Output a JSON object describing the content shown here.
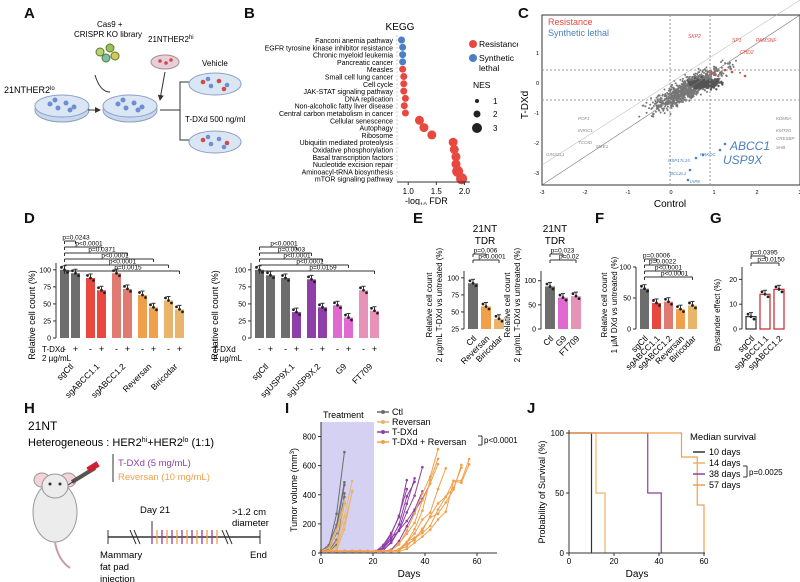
{
  "panels": {
    "A": "A",
    "B": "B",
    "C": "C",
    "D": "D",
    "E": "E",
    "F": "F",
    "G": "G",
    "H": "H",
    "I": "I",
    "J": "J"
  },
  "colors": {
    "grey": "#6d6d6d",
    "red": "#e8483f",
    "salmon": "#e07b73",
    "orange": "#f0a04b",
    "tan": "#e9b46c",
    "purple": "#8e3fa8",
    "pink": "#e06ad0",
    "lightpink": "#e793b8",
    "blue": "#4a7fc1",
    "lavender": "#b7b3ea",
    "darkred": "#c4232c"
  },
  "panelA": {
    "label_cas9": "Cas9 +",
    "label_crispr": "CRISPR KO library",
    "label_cell_lo": "21NTHER2",
    "label_cell_lo_sup": "lo",
    "label_cell_hi": "21NTHER2",
    "label_cell_hi_sup": "hi",
    "label_vehicle": "Vehicle",
    "label_tdxd": "T-DXd 500 ng/mL"
  },
  "panelB": {
    "title": "KEGG",
    "xlabel": "-log",
    "xlabel_sub": "10",
    "xlabel_end": " FDR",
    "legend_resistance": "Resistance",
    "legend_synthetic": "Synthetic",
    "legend_synthetic2": "lethal",
    "legend_nes": "NES",
    "nes_values": [
      "1",
      "2",
      "3"
    ],
    "xticks": [
      "1.0",
      "1.5",
      "2.0"
    ]
  },
  "panelC": {
    "ylabel": "T-DXd",
    "xlabel": "Control",
    "legend_resistance": "Resistance",
    "legend_synthetic": "Synthetic lethal",
    "hit1": "ABCC1",
    "hit2": "USP9X",
    "xticks": [
      "-3",
      "-2",
      "-1",
      "0",
      "1",
      "2",
      "3"
    ],
    "yticks": [
      "1",
      "0",
      "-1",
      "-2",
      "-3"
    ],
    "red_labels": [
      "SKP2",
      "SP1",
      "PAMSNF",
      "CHD2"
    ],
    "grey_labels_left": [
      "POF1",
      "INRIC1",
      "TCOID",
      "GINS2L1",
      "MXE1"
    ],
    "grey_labels_right": [
      "KDM5A",
      "KMT2D",
      "CRESBP",
      "SHB"
    ],
    "blue_labels": [
      "USP17L15",
      "PRKDC",
      "BCL2L1",
      "IAP8"
    ]
  },
  "panelD": {
    "ylabel": "Relative cell count (%)",
    "tdxd_label": "T-DXd",
    "tdxd_dose": "2 µg/mL",
    "left_xlabels": [
      "sgCtl",
      "sgABCC1.1",
      "sgABCC1.2",
      "Reversan",
      "Biricodar"
    ],
    "right_xlabels": [
      "sgCtl",
      "sgUSP9X.1",
      "sgUSP9X.2",
      "G9",
      "FT709"
    ],
    "left_pvals": [
      "p=0.0015",
      "p<0.0001",
      "p<0.0001",
      "p=0.0371",
      "p<0.0001",
      "p=0.0243"
    ],
    "right_pvals": [
      "p=0.0159",
      "p<0.0001",
      "p<0.0001",
      "p=0.0003",
      "p<0.0001"
    ],
    "yticks": [
      "100",
      "75",
      "50",
      "25",
      "0"
    ],
    "pm": [
      "-",
      "+"
    ]
  },
  "panelE": {
    "title1": "21NT",
    "title2": "TDR",
    "ylabel": "Relative cell count",
    "ylabel2": "2 µg/mL T-DXd vs untreated (%)",
    "left_xlabels": [
      "Ctl",
      "Reversan",
      "Biricodar"
    ],
    "right_xlabels": [
      "Ctl",
      "G9",
      "FT709"
    ],
    "left_pvals": [
      "p<0.0001",
      "p=0.006"
    ],
    "right_pvals": [
      "p=0.02",
      "p=0.023"
    ],
    "left_yticks": [
      "100",
      "75",
      "50",
      "25"
    ],
    "right_yticks": [
      "100",
      "50",
      "0"
    ]
  },
  "panelF": {
    "ylabel": "Relative cell count",
    "ylabel2": "1 µM DXd vs untreated (%)",
    "xlabels": [
      "sgCtl",
      "sgABCC1.1",
      "sgABCC1.2",
      "Reversan",
      "Biricodar"
    ],
    "pvals": [
      "p<0.0001",
      "p<0.0001",
      "p=0.0022",
      "p=0.0006"
    ],
    "yticks": [
      "100",
      "50",
      "0"
    ]
  },
  "panelG": {
    "ylabel": "Bystander effect (%)",
    "xlabels": [
      "sgCtl",
      "sgABCC1.1",
      "sgABCC1.2"
    ],
    "pvals": [
      "p=0.0150",
      "p=0.0395"
    ],
    "yticks": [
      "20",
      "10",
      "0"
    ]
  },
  "panelH": {
    "line1": "21NT",
    "line2": "Heterogeneous : HER2",
    "sup_hi": "hi",
    "plus": "+HER2",
    "sup_lo": "lo",
    "ratio": " (1:1)",
    "tdxd": "T-DXd (5 mg/mL)",
    "reversan": "Reversan (10 mg/mL)",
    "day": "Day 21",
    "size": ">1.2 cm",
    "diameter": "diameter",
    "mammary": "Mammary",
    "fat": "fat pad",
    "injection": "injection",
    "end": "End"
  },
  "panelI": {
    "treatment": "Treatment",
    "ylabel": "Tumor volume (mm",
    "ylabel_sup": "3",
    "ylabel_end": ")",
    "xlabel": "Days",
    "legend": [
      "Ctl",
      "Reversan",
      "T-DXd",
      "T-DXd + Reversan"
    ],
    "pval": "p<0.0001",
    "xticks": [
      "0",
      "20",
      "40",
      "60"
    ],
    "yticks": [
      "800",
      "600",
      "400",
      "200",
      "0"
    ]
  },
  "panelJ": {
    "ylabel": "Probability of Survival (%)",
    "xlabel": "Days",
    "legend_title": "Median survival",
    "legend": [
      "10 days",
      "14 days",
      "38 days",
      "57 days"
    ],
    "pval": "p=0.0025",
    "xticks": [
      "0",
      "20",
      "40",
      "60"
    ],
    "yticks": [
      "100",
      "50",
      "0"
    ]
  },
  "chart_data": [
    {
      "type": "scatter",
      "title": "KEGG",
      "xlabel": "-log10 FDR",
      "xlim": [
        0.8,
        2.1
      ],
      "categories": [
        "Fanconi anemia pathway",
        "EGFR tyrosine kinase inhibitor resistance",
        "Chronic myeloid leukemia",
        "Pancreatic cancer",
        "Measles",
        "Small cell lung cancer",
        "Cell cycle",
        "JAK-STAT signaling pathway",
        "DNA replication",
        "Non-alcoholic fatty liver disease",
        "Central carbon metabolism in cancer",
        "Cellular senescence",
        "Autophagy",
        "Ribosome",
        "Ubiquitin mediated proteolysis",
        "Oxidative phosphorylation",
        "Basal transcription factors",
        "Nucleotide excision repair",
        "Aminoacyl-tRNA biosynthesis",
        "mTOR signaling pathway"
      ],
      "values": [
        0.88,
        0.9,
        0.9,
        0.9,
        0.9,
        0.92,
        0.92,
        0.92,
        0.95,
        0.93,
        0.95,
        1.2,
        1.28,
        1.42,
        1.8,
        1.82,
        1.85,
        1.85,
        1.88,
        1.95
      ],
      "group": [
        "Synthetic lethal",
        "Synthetic lethal",
        "Synthetic lethal",
        "Synthetic lethal",
        "Resistance",
        "Resistance",
        "Resistance",
        "Resistance",
        "Resistance",
        "Resistance",
        "Resistance",
        "Resistance",
        "Resistance",
        "Resistance",
        "Resistance",
        "Resistance",
        "Resistance",
        "Resistance",
        "Resistance",
        "Resistance"
      ],
      "nes": [
        1,
        1,
        1,
        1,
        1,
        1,
        1,
        1,
        1,
        1,
        1,
        2,
        2,
        2,
        2,
        2,
        2,
        2,
        3,
        3
      ]
    },
    {
      "type": "bar",
      "title": "D left",
      "categories": [
        "sgCtl -",
        "sgCtl +",
        "sgABCC1.1 -",
        "sgABCC1.1 +",
        "sgABCC1.2 -",
        "sgABCC1.2 +",
        "Reversan -",
        "Reversan +",
        "Biricodar -",
        "Biricodar +"
      ],
      "values": [
        100,
        95,
        88,
        70,
        95,
        72,
        63,
        45,
        55,
        42
      ],
      "ylim": [
        0,
        110
      ]
    },
    {
      "type": "bar",
      "title": "D right",
      "categories": [
        "sgCtl -",
        "sgCtl +",
        "sgUSP9X.1 -",
        "sgUSP9X.1 +",
        "sgUSP9X.2 -",
        "sgUSP9X.2 +",
        "G9 -",
        "G9 +",
        "FT709 -",
        "FT709 +"
      ],
      "values": [
        100,
        92,
        88,
        38,
        86,
        45,
        48,
        30,
        70,
        40
      ],
      "ylim": [
        0,
        110
      ]
    },
    {
      "type": "bar",
      "title": "E left",
      "categories": [
        "Ctl",
        "Reversan",
        "Biricodar"
      ],
      "values": [
        92,
        58,
        40
      ],
      "ylim": [
        25,
        110
      ]
    },
    {
      "type": "bar",
      "title": "E right",
      "categories": [
        "Ctl",
        "G9",
        "FT709"
      ],
      "values": [
        88,
        65,
        68
      ],
      "ylim": [
        0,
        120
      ]
    },
    {
      "type": "bar",
      "title": "F",
      "categories": [
        "sgCtl",
        "sgABCC1.1",
        "sgABCC1.2",
        "Reversan",
        "Biricodar"
      ],
      "values": [
        65,
        42,
        44,
        32,
        38
      ],
      "ylim": [
        0,
        100
      ]
    },
    {
      "type": "bar",
      "title": "G",
      "categories": [
        "sgCtl",
        "sgABCC1.1",
        "sgABCC1.2"
      ],
      "values": [
        5,
        14,
        16
      ],
      "ylim": [
        0,
        25
      ]
    },
    {
      "type": "line",
      "title": "Kaplan-Meier",
      "xlabel": "Days",
      "ylabel": "Probability of Survival (%)",
      "series": [
        {
          "name": "10 days",
          "values": [
            [
              0,
              100
            ],
            [
              10,
              100
            ],
            [
              10,
              0
            ]
          ]
        },
        {
          "name": "14 days",
          "values": [
            [
              0,
              100
            ],
            [
              12,
              100
            ],
            [
              12,
              50
            ],
            [
              16,
              50
            ],
            [
              16,
              0
            ]
          ]
        },
        {
          "name": "38 days",
          "values": [
            [
              0,
              100
            ],
            [
              35,
              100
            ],
            [
              35,
              50
            ],
            [
              41,
              50
            ],
            [
              41,
              0
            ]
          ]
        },
        {
          "name": "57 days",
          "values": [
            [
              0,
              100
            ],
            [
              50,
              100
            ],
            [
              50,
              80
            ],
            [
              57,
              80
            ],
            [
              57,
              40
            ],
            [
              60,
              40
            ],
            [
              60,
              0
            ]
          ]
        }
      ],
      "xlim": [
        0,
        60
      ],
      "ylim": [
        0,
        100
      ]
    }
  ]
}
